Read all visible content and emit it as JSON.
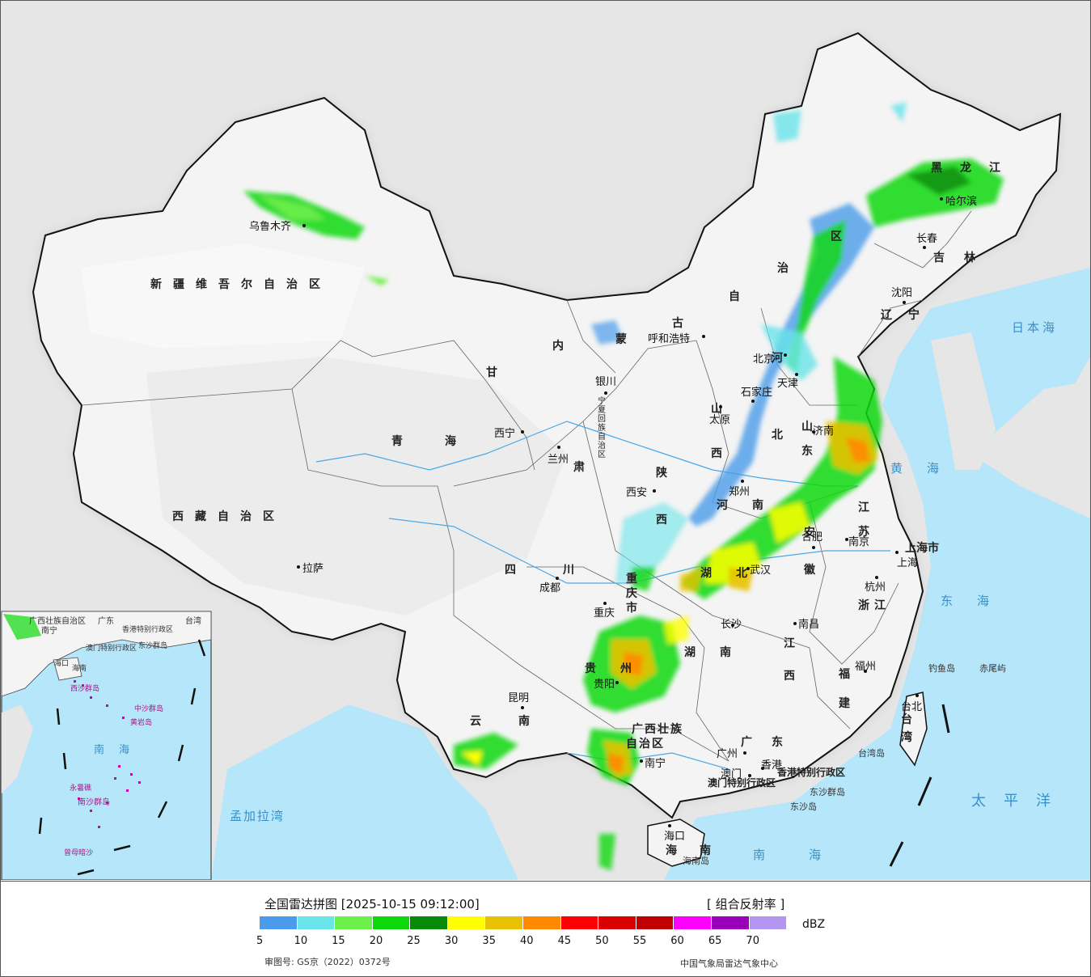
{
  "title": "全国雷达拼图 [2025-10-15 09:12:00]",
  "product": "[ 组合反射率 ]",
  "unit": "dBZ",
  "scale": {
    "colors": [
      "#4a9bea",
      "#69e4ea",
      "#6ef04a",
      "#0cd80c",
      "#078a07",
      "#ffff00",
      "#e8c200",
      "#ff8a00",
      "#ff0000",
      "#d80000",
      "#c00000",
      "#ff00ff",
      "#9a00b8",
      "#b496f0"
    ],
    "ticks": [
      "5",
      "10",
      "15",
      "20",
      "25",
      "30",
      "35",
      "40",
      "45",
      "50",
      "55",
      "60",
      "65",
      "70"
    ]
  },
  "approval": "审图号: GS京（2022）0372号",
  "source": "中国气象局雷达气象中心",
  "provinces": {
    "xinjiang": "新疆维吾尔自治区",
    "xizang": "西藏自治区",
    "qinghai": "青海",
    "gansu": "甘",
    "gansu2": "肃",
    "neimenggu": [
      "内",
      "蒙",
      "古",
      "自",
      "治",
      "区"
    ],
    "heilongjiang": "黑龙江",
    "jilin": "吉林",
    "liaoning": "辽宁",
    "hebei": "河北",
    "shanxi": "山西",
    "shaanxi": "陕西",
    "ningxia": "宁夏回族自治区",
    "sichuan": "四川",
    "chongqing": "重庆市",
    "yunnan": "云南",
    "guizhou": "贵州",
    "guangxi1": "广西壮族",
    "guangxi2": "自治区",
    "guangdong": "广东",
    "hainan": "海南",
    "hunan": "湖南",
    "hubei": "湖北",
    "henan": "河南",
    "shandong": "山东",
    "jiangsu": "江苏",
    "anhui": "安徽",
    "zhejiang": "浙江",
    "jiangxi": "江西",
    "fujian": "福建",
    "taiwan": "台湾",
    "shanghai": "上海市",
    "beijing": "北京",
    "tianjin": "天津",
    "hk": "香港特别行政区",
    "macau": "澳门特别行政区"
  },
  "cities": [
    {
      "name": "乌鲁木齐"
    },
    {
      "name": "拉萨"
    },
    {
      "name": "西宁"
    },
    {
      "name": "兰州"
    },
    {
      "name": "银川"
    },
    {
      "name": "呼和浩特"
    },
    {
      "name": "哈尔滨"
    },
    {
      "name": "长春"
    },
    {
      "name": "沈阳"
    },
    {
      "name": "北京"
    },
    {
      "name": "天津"
    },
    {
      "name": "石家庄"
    },
    {
      "name": "太原"
    },
    {
      "name": "济南"
    },
    {
      "name": "郑州"
    },
    {
      "name": "西安"
    },
    {
      "name": "成都"
    },
    {
      "name": "重庆"
    },
    {
      "name": "贵阳"
    },
    {
      "name": "昆明"
    },
    {
      "name": "南宁"
    },
    {
      "name": "广州"
    },
    {
      "name": "澳门"
    },
    {
      "name": "香港"
    },
    {
      "name": "海口"
    },
    {
      "name": "长沙"
    },
    {
      "name": "武汉"
    },
    {
      "name": "南昌"
    },
    {
      "name": "合肥"
    },
    {
      "name": "南京"
    },
    {
      "name": "上海"
    },
    {
      "name": "杭州"
    },
    {
      "name": "福州"
    },
    {
      "name": "台北"
    }
  ],
  "seas": {
    "japan": "日本海",
    "yellow": "黄海",
    "east": "东海",
    "pacific": "太平洋",
    "south": "南海",
    "bengal": "孟加拉湾"
  },
  "islands": {
    "diaoyu": "钓鱼岛",
    "chiwei": "赤尾屿",
    "dongsha_qd": "东沙群岛",
    "dongsha": "东沙岛",
    "hainan_island": "海南岛",
    "taiwan_island": "台湾岛"
  },
  "inset": {
    "labels": [
      "广西壮族自治区",
      "南宁",
      "广东",
      "香港特别行政区",
      "澳门特别行政区",
      "东沙群岛",
      "海南",
      "海口",
      "西沙群岛",
      "中沙群岛",
      "黄岩岛",
      "南海",
      "南沙群岛",
      "永暑礁",
      "曾母暗沙",
      "台湾"
    ]
  }
}
